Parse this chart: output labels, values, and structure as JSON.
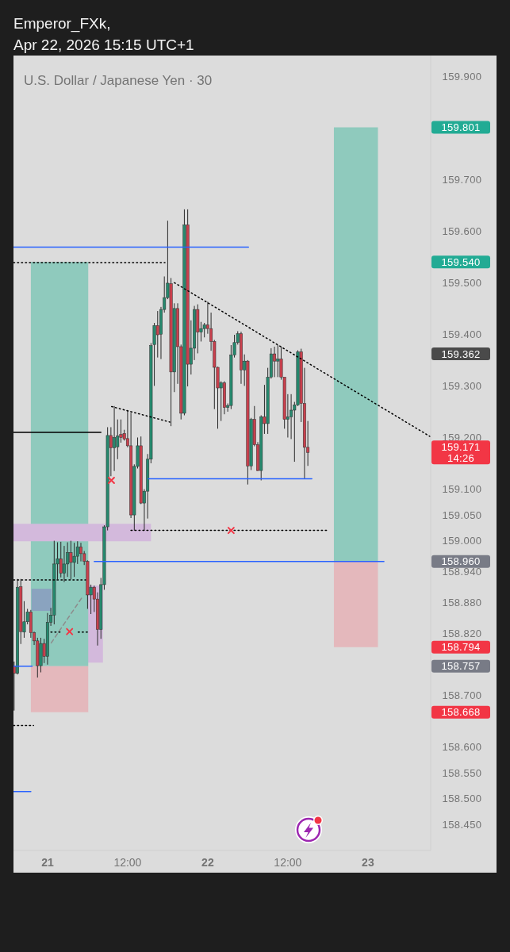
{
  "chart_data": {
    "type": "candlestick",
    "title": "U.S. Dollar / Japanese Yen · 30",
    "annotations": [
      "Emperor_FXk,",
      "Apr 22, 2026 15:15 UTC+1"
    ],
    "x": [
      "2026-04-20T19:00",
      "2026-04-20T19:30",
      "2026-04-20T20:00",
      "2026-04-20T20:30",
      "2026-04-20T21:00",
      "2026-04-20T21:30",
      "2026-04-20T22:00",
      "2026-04-20T22:30",
      "2026-04-20T23:00",
      "2026-04-20T23:30",
      "2026-04-21T00:00",
      "2026-04-21T00:30",
      "2026-04-21T01:00",
      "2026-04-21T01:30",
      "2026-04-21T02:00",
      "2026-04-21T02:30",
      "2026-04-21T03:00",
      "2026-04-21T03:30",
      "2026-04-21T04:00",
      "2026-04-21T04:30",
      "2026-04-21T05:00",
      "2026-04-21T05:30",
      "2026-04-21T06:00",
      "2026-04-21T06:30",
      "2026-04-21T07:00",
      "2026-04-21T07:30",
      "2026-04-21T08:00",
      "2026-04-21T08:30",
      "2026-04-21T09:00",
      "2026-04-21T09:30",
      "2026-04-21T10:00",
      "2026-04-21T10:30",
      "2026-04-21T11:00",
      "2026-04-21T11:30",
      "2026-04-21T12:00",
      "2026-04-21T12:30",
      "2026-04-21T13:00",
      "2026-04-21T13:30",
      "2026-04-21T14:00",
      "2026-04-21T14:30",
      "2026-04-21T15:00",
      "2026-04-21T15:30",
      "2026-04-21T16:00",
      "2026-04-21T16:30",
      "2026-04-21T17:00",
      "2026-04-21T17:30",
      "2026-04-21T18:00",
      "2026-04-21T18:30",
      "2026-04-21T19:00",
      "2026-04-21T19:30",
      "2026-04-21T20:00",
      "2026-04-21T20:30",
      "2026-04-21T21:00",
      "2026-04-21T21:30",
      "2026-04-21T22:00",
      "2026-04-21T22:30",
      "2026-04-21T23:00",
      "2026-04-21T23:30",
      "2026-04-22T00:00",
      "2026-04-22T00:30",
      "2026-04-22T01:00",
      "2026-04-22T01:30",
      "2026-04-22T02:00",
      "2026-04-22T02:30",
      "2026-04-22T03:00",
      "2026-04-22T03:30",
      "2026-04-22T04:00",
      "2026-04-22T04:30",
      "2026-04-22T05:00",
      "2026-04-22T05:30",
      "2026-04-22T06:00",
      "2026-04-22T06:30",
      "2026-04-22T07:00",
      "2026-04-22T07:30",
      "2026-04-22T08:00",
      "2026-04-22T08:30",
      "2026-04-22T09:00",
      "2026-04-22T09:30",
      "2026-04-22T10:00",
      "2026-04-22T10:30",
      "2026-04-22T11:00",
      "2026-04-22T11:30",
      "2026-04-22T12:00",
      "2026-04-22T12:30",
      "2026-04-22T13:00",
      "2026-04-22T13:30",
      "2026-04-22T14:00",
      "2026-04-22T14:30",
      "2026-04-22T15:00"
    ],
    "ohlc": [
      [
        158.757,
        158.766,
        158.671,
        158.743
      ],
      [
        158.743,
        158.926,
        158.741,
        158.91
      ],
      [
        158.911,
        158.926,
        158.8,
        158.824
      ],
      [
        158.823,
        158.883,
        158.812,
        158.843
      ],
      [
        158.843,
        158.868,
        158.838,
        158.862
      ],
      [
        158.862,
        158.866,
        158.812,
        158.822
      ],
      [
        158.822,
        158.824,
        158.798,
        158.806
      ],
      [
        158.806,
        158.812,
        158.735,
        158.758
      ],
      [
        158.758,
        158.812,
        158.745,
        158.801
      ],
      [
        158.801,
        158.81,
        158.763,
        158.776
      ],
      [
        158.776,
        158.86,
        158.76,
        158.842
      ],
      [
        158.842,
        158.87,
        158.835,
        158.856
      ],
      [
        158.856,
        159.0,
        158.838,
        158.955
      ],
      [
        158.955,
        158.997,
        158.925,
        158.965
      ],
      [
        158.965,
        158.998,
        158.929,
        158.937
      ],
      [
        158.937,
        158.99,
        158.92,
        158.955
      ],
      [
        158.955,
        158.997,
        158.93,
        158.977
      ],
      [
        158.977,
        159.0,
        158.925,
        158.958
      ],
      [
        158.958,
        158.996,
        158.93,
        158.97
      ],
      [
        158.97,
        158.999,
        158.955,
        158.988
      ],
      [
        158.988,
        158.996,
        158.96,
        158.975
      ],
      [
        158.975,
        158.98,
        158.953,
        158.96
      ],
      [
        158.96,
        158.962,
        158.868,
        158.895
      ],
      [
        158.895,
        158.915,
        158.858,
        158.91
      ],
      [
        158.91,
        158.913,
        158.862,
        158.887
      ],
      [
        158.887,
        158.9,
        158.797,
        158.828
      ],
      [
        158.828,
        158.928,
        158.81,
        158.915
      ],
      [
        158.915,
        159.03,
        158.905,
        159.027
      ],
      [
        159.027,
        159.22,
        159.02,
        159.204
      ],
      [
        159.204,
        159.22,
        159.125,
        159.18
      ],
      [
        159.18,
        159.261,
        159.135,
        159.2
      ],
      [
        159.182,
        159.235,
        159.158,
        159.203
      ],
      [
        159.206,
        159.235,
        159.19,
        159.2
      ],
      [
        159.208,
        159.215,
        159.194,
        159.197
      ],
      [
        159.198,
        159.253,
        159.181,
        159.184
      ],
      [
        159.184,
        159.248,
        159.044,
        159.05
      ],
      [
        159.05,
        159.148,
        159.02,
        159.144
      ],
      [
        159.144,
        159.2,
        159.14,
        159.184
      ],
      [
        159.184,
        159.202,
        159.071,
        159.073
      ],
      [
        159.073,
        159.1,
        159.02,
        159.096
      ],
      [
        159.096,
        159.168,
        159.043,
        159.158
      ],
      [
        159.158,
        159.383,
        159.15,
        159.378
      ],
      [
        159.38,
        159.422,
        159.3,
        159.417
      ],
      [
        159.417,
        159.445,
        159.355,
        159.399
      ],
      [
        159.4,
        159.453,
        159.352,
        159.448
      ],
      [
        159.448,
        159.512,
        159.442,
        159.471
      ],
      [
        159.471,
        159.62,
        159.468,
        159.499
      ],
      [
        159.498,
        159.509,
        159.222,
        159.327
      ],
      [
        159.327,
        159.46,
        159.288,
        159.45
      ],
      [
        159.45,
        159.46,
        159.304,
        159.376
      ],
      [
        159.376,
        159.38,
        159.235,
        159.247
      ],
      [
        159.247,
        159.642,
        159.243,
        159.612
      ],
      [
        159.612,
        159.642,
        159.299,
        159.342
      ],
      [
        159.342,
        159.427,
        159.322,
        159.373
      ],
      [
        159.373,
        159.455,
        159.35,
        159.448
      ],
      [
        159.448,
        159.458,
        159.363,
        159.404
      ],
      [
        159.404,
        159.424,
        159.386,
        159.411
      ],
      [
        159.411,
        159.422,
        159.394,
        159.418
      ],
      [
        159.418,
        159.463,
        159.401,
        159.411
      ],
      [
        159.411,
        159.442,
        159.368,
        159.386
      ],
      [
        159.386,
        159.389,
        159.255,
        159.336
      ],
      [
        159.336,
        159.337,
        159.217,
        159.296
      ],
      [
        159.296,
        159.309,
        159.232,
        159.306
      ],
      [
        159.306,
        159.309,
        159.245,
        159.258
      ],
      [
        159.258,
        159.266,
        159.25,
        159.262
      ],
      [
        159.262,
        159.379,
        159.255,
        159.36
      ],
      [
        159.36,
        159.399,
        159.355,
        159.384
      ],
      [
        159.384,
        159.406,
        159.38,
        159.401
      ],
      [
        159.401,
        159.405,
        159.304,
        159.331
      ],
      [
        159.331,
        159.361,
        159.3,
        159.348
      ],
      [
        159.348,
        159.35,
        159.109,
        159.145
      ],
      [
        159.145,
        159.238,
        159.137,
        159.235
      ],
      [
        159.235,
        159.261,
        159.183,
        159.186
      ],
      [
        159.186,
        159.191,
        159.135,
        159.136
      ],
      [
        159.136,
        159.243,
        159.117,
        159.24
      ],
      [
        159.24,
        159.302,
        159.207,
        159.227
      ],
      [
        159.227,
        159.335,
        159.207,
        159.317
      ],
      [
        159.317,
        159.373,
        159.314,
        159.362
      ],
      [
        159.362,
        159.376,
        159.317,
        159.348
      ],
      [
        159.348,
        159.379,
        159.317,
        159.352
      ],
      [
        159.352,
        159.376,
        159.312,
        159.317
      ],
      [
        159.317,
        159.317,
        159.217,
        159.235
      ],
      [
        159.235,
        159.284,
        159.2,
        159.24
      ],
      [
        159.24,
        159.284,
        159.197,
        159.253
      ],
      [
        159.253,
        159.269,
        159.153,
        159.263
      ],
      [
        159.263,
        159.369,
        159.261,
        159.366
      ],
      [
        159.366,
        159.372,
        159.23,
        159.266
      ],
      [
        159.266,
        159.335,
        159.12,
        159.181
      ],
      [
        159.181,
        159.232,
        159.145,
        159.171
      ]
    ],
    "colors": [
      "#c9404d",
      "#26896e",
      "#c9404d",
      "#26896e",
      "#26896e",
      "#c9404d",
      "#c9404d",
      "#c9404d",
      "#26896e",
      "#c9404d",
      "#26896e",
      "#26896e",
      "#26896e",
      "#26896e",
      "#c9404d",
      "#26896e",
      "#26896e",
      "#c9404d",
      "#26896e",
      "#26896e",
      "#c9404d",
      "#c9404d",
      "#c9404d",
      "#26896e",
      "#c9404d",
      "#c9404d",
      "#26896e",
      "#26896e",
      "#26896e",
      "#c9404d",
      "#26896e",
      "#26896e",
      "#c9404d",
      "#c9404d",
      "#c9404d",
      "#c9404d",
      "#26896e",
      "#26896e",
      "#c9404d",
      "#26896e",
      "#26896e",
      "#26896e",
      "#26896e",
      "#c9404d",
      "#26896e",
      "#26896e",
      "#26896e",
      "#c9404d",
      "#26896e",
      "#c9404d",
      "#c9404d",
      "#26896e",
      "#c9404d",
      "#26896e",
      "#26896e",
      "#c9404d",
      "#26896e",
      "#26896e",
      "#c9404d",
      "#c9404d",
      "#c9404d",
      "#c9404d",
      "#26896e",
      "#c9404d",
      "#26896e",
      "#26896e",
      "#26896e",
      "#26896e",
      "#c9404d",
      "#26896e",
      "#c9404d",
      "#26896e",
      "#c9404d",
      "#c9404d",
      "#26896e",
      "#c9404d",
      "#26896e",
      "#26896e",
      "#c9404d",
      "#26896e",
      "#c9404d",
      "#c9404d",
      "#26896e",
      "#26896e",
      "#26896e",
      "#26896e",
      "#c9404d",
      "#c9404d",
      "#c9404d"
    ],
    "series": [
      {
        "type": "area",
        "x": [
          "2026-04-20T21:36",
          "2026-04-21T08:18"
        ],
        "values": [
          null,
          null
        ],
        "lower": [
          158.764,
          158.764
        ],
        "upper": [
          158.913,
          158.913
        ],
        "color": "#d3b9dc"
      },
      {
        "type": "area",
        "x": [
          "2026-04-20T21:30",
          "2026-04-21T06:06"
        ],
        "values": [
          null,
          null
        ],
        "lower": [
          158.757,
          158.757
        ],
        "upper": [
          159.54,
          159.54
        ],
        "color": "#8fcabd"
      },
      {
        "type": "area",
        "x": [
          "2026-04-20T21:30",
          "2026-04-21T06:06"
        ],
        "values": [
          null,
          null
        ],
        "lower": [
          158.668,
          158.668
        ],
        "upper": [
          158.757,
          158.757
        ],
        "color": "#e4b8bc"
      },
      {
        "type": "area",
        "x": [
          "2026-04-22T18:54",
          "2026-04-23T01:30"
        ],
        "values": [
          null,
          null
        ],
        "lower": [
          158.96,
          158.96
        ],
        "upper": [
          159.801,
          159.801
        ],
        "color": "#8fcabd"
      },
      {
        "type": "area",
        "x": [
          "2026-04-22T18:54",
          "2026-04-23T01:30"
        ],
        "values": [
          null,
          null
        ],
        "lower": [
          158.794,
          158.794
        ],
        "upper": [
          158.96,
          158.96
        ],
        "color": "#e4b8bc"
      },
      {
        "type": "area",
        "x": [
          "2026-04-20T18:54",
          "2026-04-21T15:30"
        ],
        "values": [
          null,
          null
        ],
        "lower": [
          158.999,
          158.999
        ],
        "upper": [
          159.033,
          159.033
        ],
        "color": "#d3b9dc"
      },
      {
        "type": "area",
        "x": [
          "2026-04-20T21:36",
          "2026-04-21T00:36"
        ],
        "values": [
          null,
          null
        ],
        "lower": [
          158.864,
          158.864
        ],
        "upper": [
          158.907,
          158.907
        ],
        "color": "#8aa3bf"
      },
      {
        "type": "line",
        "x": [
          "2026-04-20T18:54",
          "2026-04-22T06:06"
        ],
        "values": [
          159.569,
          159.569
        ],
        "color": "#2962ff",
        "line_style": "solid"
      },
      {
        "type": "line",
        "x": [
          "2026-04-21T15:06",
          "2026-04-22T15:36"
        ],
        "values": [
          159.12,
          159.12
        ],
        "color": "#2962ff",
        "line_style": "solid"
      },
      {
        "type": "line",
        "x": [
          "2026-04-21T07:00",
          "2026-04-23T02:24"
        ],
        "values": [
          158.96,
          158.96
        ],
        "color": "#2962ff",
        "line_style": "solid"
      },
      {
        "type": "line",
        "x": [
          "2026-04-20T18:54",
          "2026-04-20T21:42"
        ],
        "values": [
          158.757,
          158.757
        ],
        "color": "#2962ff",
        "line_style": "solid"
      },
      {
        "type": "line",
        "x": [
          "2026-04-20T18:54",
          "2026-04-20T21:30"
        ],
        "values": [
          158.514,
          158.514
        ],
        "color": "#2962ff",
        "line_style": "solid"
      },
      {
        "type": "line",
        "x": [
          "2026-04-20T18:54",
          "2026-04-21T08:00"
        ],
        "values": [
          159.21,
          159.21
        ],
        "color": "#000000",
        "line_style": "solid"
      },
      {
        "type": "line",
        "x": [
          "2026-04-20T18:54",
          "2026-04-21T17:36"
        ],
        "values": [
          159.539,
          159.539
        ],
        "color": "#000000",
        "line_style": "dotted"
      },
      {
        "type": "line",
        "x": [
          "2026-04-21T19:00",
          "2026-04-23T09:18"
        ],
        "values": [
          159.5,
          159.202
        ],
        "color": "#000000",
        "line_style": "dotted"
      },
      {
        "type": "line",
        "x": [
          "2026-04-21T09:36",
          "2026-04-21T18:18"
        ],
        "values": [
          159.26,
          159.23
        ],
        "color": "#000000",
        "line_style": "dotted"
      },
      {
        "type": "line",
        "x": [
          "2026-04-21T12:30",
          "2026-04-22T18:12"
        ],
        "values": [
          159.02,
          159.02
        ],
        "color": "#000000",
        "line_style": "dotted"
      },
      {
        "type": "line",
        "x": [
          "2026-04-20T18:54",
          "2026-04-21T05:42"
        ],
        "values": [
          158.924,
          158.924
        ],
        "color": "#000000",
        "line_style": "dotted"
      },
      {
        "type": "line",
        "x": [
          "2026-04-21T00:30",
          "2026-04-21T01:54"
        ],
        "values": [
          158.823,
          158.823
        ],
        "color": "#000000",
        "line_style": "dotted"
      },
      {
        "type": "line",
        "x": [
          "2026-04-21T04:36",
          "2026-04-21T06:00"
        ],
        "values": [
          158.823,
          158.823
        ],
        "color": "#000000",
        "line_style": "dotted"
      },
      {
        "type": "line",
        "x": [
          "2026-04-20T18:54",
          "2026-04-20T21:54"
        ],
        "values": [
          158.642,
          158.642
        ],
        "color": "#000000",
        "line_style": "dotted"
      },
      {
        "type": "line",
        "x": [
          "2026-04-21T00:33",
          "2026-04-21T05:16"
        ],
        "values": [
          158.802,
          158.892
        ],
        "color": "#8c8c8c",
        "line_style": "dashed"
      },
      {
        "type": "scatter",
        "x": [
          "2026-04-21T09:34",
          "2026-04-22T03:30",
          "2026-04-21T03:18"
        ],
        "values": [
          159.117,
          159.02,
          158.824
        ],
        "color": "#f23645",
        "marker": "cross"
      }
    ],
    "xlim": [
      "2026-04-20T18:54",
      "2026-04-23T09:24"
    ],
    "xticks": [
      {
        "value": "2026-04-21T00:00",
        "label": "21"
      },
      {
        "value": "2026-04-21T12:00",
        "label": "12:00"
      },
      {
        "value": "2026-04-22T00:00",
        "label": "22"
      },
      {
        "value": "2026-04-22T12:00",
        "label": "12:00"
      },
      {
        "value": "2026-04-23T00:00",
        "label": "23"
      }
    ],
    "ylim": [
      158.4,
      159.94
    ],
    "yticks": [
      {
        "value": 159.9,
        "label": "159.900"
      },
      {
        "value": 159.7,
        "label": "159.700"
      },
      {
        "value": 159.6,
        "label": "159.600"
      },
      {
        "value": 159.5,
        "label": "159.500"
      },
      {
        "value": 159.4,
        "label": "159.400"
      },
      {
        "value": 159.3,
        "label": "159.300"
      },
      {
        "value": 159.2,
        "label": "159.200"
      },
      {
        "value": 159.1,
        "label": "159.100"
      },
      {
        "value": 159.05,
        "label": "159.050"
      },
      {
        "value": 159.0,
        "label": "159.000"
      },
      {
        "value": 158.94,
        "label": "158.940"
      },
      {
        "value": 158.88,
        "label": "158.880"
      },
      {
        "value": 158.82,
        "label": "158.820"
      },
      {
        "value": 158.7,
        "label": "158.700"
      },
      {
        "value": 158.6,
        "label": "158.600"
      },
      {
        "value": 158.55,
        "label": "158.550"
      },
      {
        "value": 158.5,
        "label": "158.500"
      },
      {
        "value": 158.45,
        "label": "158.450"
      }
    ],
    "y2lim": [
      158.4,
      159.94
    ],
    "y2ticks": [
      159.801,
      {
        "value": 159.54,
        "label": "159.540"
      },
      159.362,
      {
        "value": 159.171,
        "label": "159.171\n14:26"
      },
      {
        "value": 158.96,
        "label": "158.960"
      },
      158.794,
      158.757,
      158.668
    ]
  }
}
